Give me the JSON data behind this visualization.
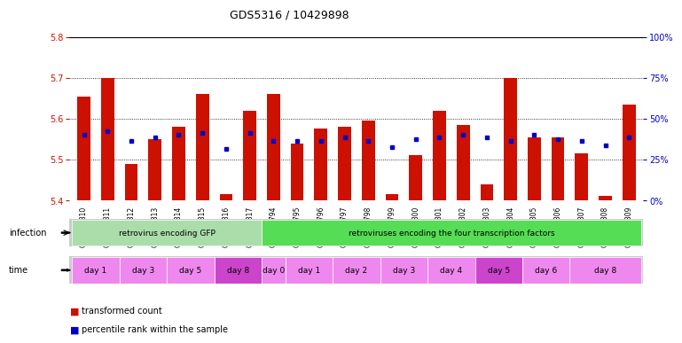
{
  "title": "GDS5316 / 10429898",
  "samples": [
    "GSM943810",
    "GSM943811",
    "GSM943812",
    "GSM943813",
    "GSM943814",
    "GSM943815",
    "GSM943816",
    "GSM943817",
    "GSM943794",
    "GSM943795",
    "GSM943796",
    "GSM943797",
    "GSM943798",
    "GSM943799",
    "GSM943800",
    "GSM943801",
    "GSM943802",
    "GSM943803",
    "GSM943804",
    "GSM943805",
    "GSM943806",
    "GSM943807",
    "GSM943808",
    "GSM943809"
  ],
  "red_values": [
    5.655,
    5.7,
    5.49,
    5.55,
    5.58,
    5.66,
    5.415,
    5.62,
    5.66,
    5.54,
    5.575,
    5.58,
    5.595,
    5.415,
    5.51,
    5.62,
    5.585,
    5.44,
    5.7,
    5.555,
    5.555,
    5.515,
    5.41,
    5.635
  ],
  "blue_values": [
    5.56,
    5.57,
    5.545,
    5.555,
    5.56,
    5.565,
    5.525,
    5.565,
    5.545,
    5.545,
    5.545,
    5.555,
    5.545,
    5.53,
    5.55,
    5.555,
    5.56,
    5.555,
    5.545,
    5.56,
    5.55,
    5.545,
    5.535,
    5.555
  ],
  "y_min": 5.4,
  "y_max": 5.8,
  "y_ticks": [
    5.4,
    5.5,
    5.6,
    5.7,
    5.8
  ],
  "right_labels": [
    "0%",
    "25%",
    "50%",
    "75%",
    "100%"
  ],
  "infection_groups": [
    {
      "label": "retrovirus encoding GFP",
      "start": 0,
      "end": 7,
      "color": "#aaddaa"
    },
    {
      "label": "retroviruses encoding the four transcription factors",
      "start": 8,
      "end": 23,
      "color": "#55dd55"
    }
  ],
  "time_groups": [
    {
      "label": "day 1",
      "start": 0,
      "end": 1,
      "color": "#ee88ee"
    },
    {
      "label": "day 3",
      "start": 2,
      "end": 3,
      "color": "#ee88ee"
    },
    {
      "label": "day 5",
      "start": 4,
      "end": 5,
      "color": "#ee88ee"
    },
    {
      "label": "day 8",
      "start": 6,
      "end": 7,
      "color": "#cc44cc"
    },
    {
      "label": "day 0",
      "start": 8,
      "end": 8,
      "color": "#ee88ee"
    },
    {
      "label": "day 1",
      "start": 9,
      "end": 10,
      "color": "#ee88ee"
    },
    {
      "label": "day 2",
      "start": 11,
      "end": 12,
      "color": "#ee88ee"
    },
    {
      "label": "day 3",
      "start": 13,
      "end": 14,
      "color": "#ee88ee"
    },
    {
      "label": "day 4",
      "start": 15,
      "end": 16,
      "color": "#ee88ee"
    },
    {
      "label": "day 5",
      "start": 17,
      "end": 18,
      "color": "#cc44cc"
    },
    {
      "label": "day 6",
      "start": 19,
      "end": 20,
      "color": "#ee88ee"
    },
    {
      "label": "day 8",
      "start": 21,
      "end": 23,
      "color": "#ee88ee"
    }
  ],
  "bar_color": "#CC1100",
  "dot_color": "#0000CC",
  "bg_color": "#FFFFFF",
  "left_axis_color": "#CC1100",
  "right_axis_color": "#0000CC",
  "grid_color": "#000000",
  "title_fontsize": 9,
  "tick_fontsize": 7,
  "sample_fontsize": 5.5,
  "annotation_fontsize": 6.5,
  "label_fontsize": 7,
  "legend_fontsize": 7
}
